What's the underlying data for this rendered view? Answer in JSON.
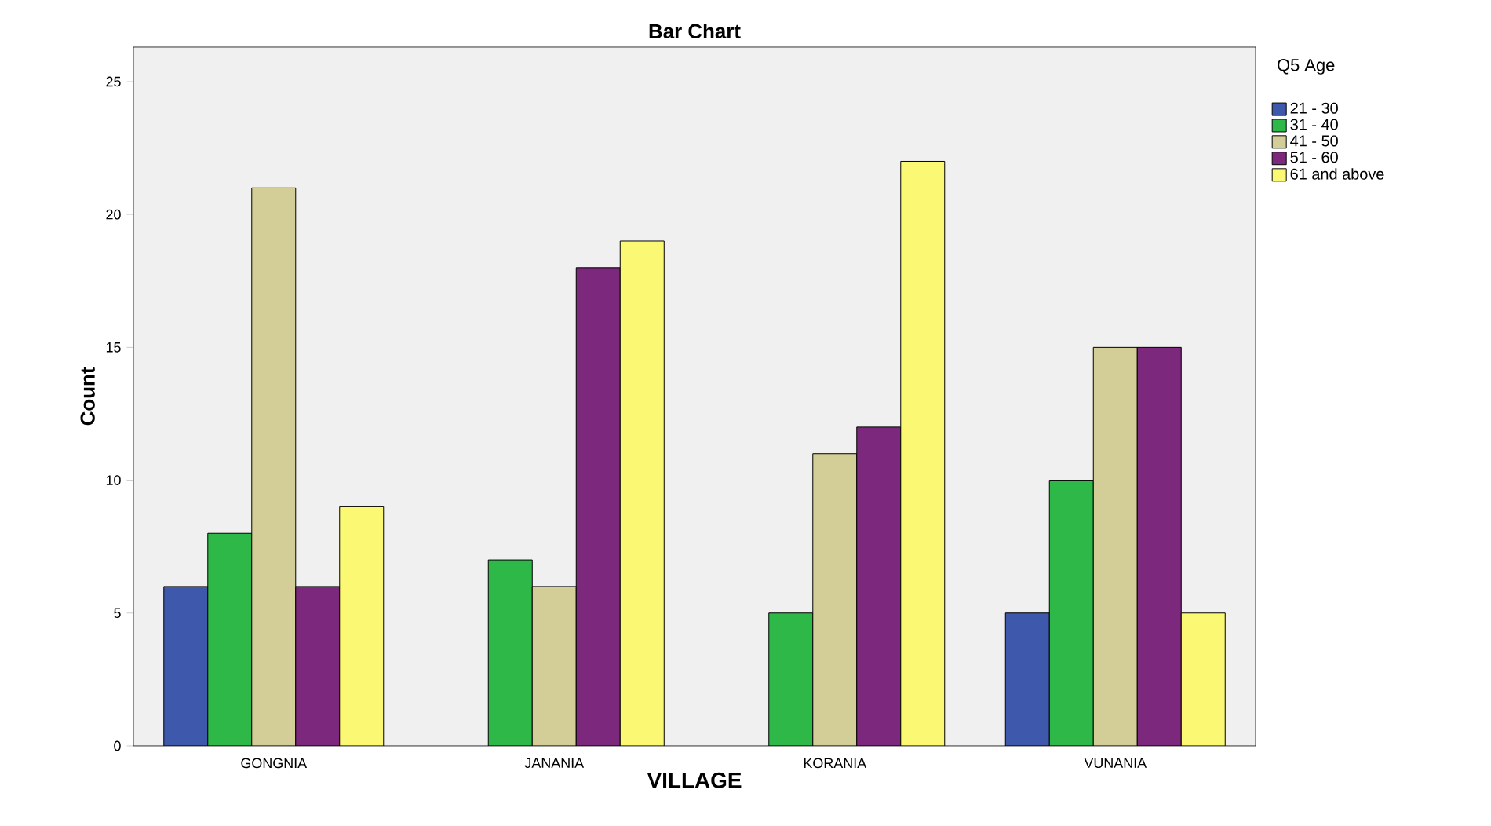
{
  "chart_data": {
    "type": "bar",
    "title": "Bar Chart",
    "xlabel": "VILLAGE",
    "ylabel": "Count",
    "legend_title": "Q5 Age",
    "legend": "right",
    "grid": false,
    "categories": [
      "GONGNIA",
      "JANANIA",
      "KORANIA",
      "VUNANIA"
    ],
    "ylim": [
      0,
      26.3
    ],
    "yticks": [
      0,
      5,
      10,
      15,
      20,
      25
    ],
    "series": [
      {
        "name": "21 - 30",
        "color": "#3e58ac",
        "values": [
          6,
          null,
          null,
          5
        ]
      },
      {
        "name": "31 - 40",
        "color": "#2eb848",
        "values": [
          8,
          7,
          5,
          10
        ]
      },
      {
        "name": "41 - 50",
        "color": "#d3ce97",
        "values": [
          21,
          6,
          11,
          15
        ]
      },
      {
        "name": "51 - 60",
        "color": "#7c287d",
        "values": [
          6,
          18,
          12,
          15
        ]
      },
      {
        "name": "61 and above",
        "color": "#fbf873",
        "values": [
          9,
          19,
          22,
          5
        ]
      }
    ]
  }
}
